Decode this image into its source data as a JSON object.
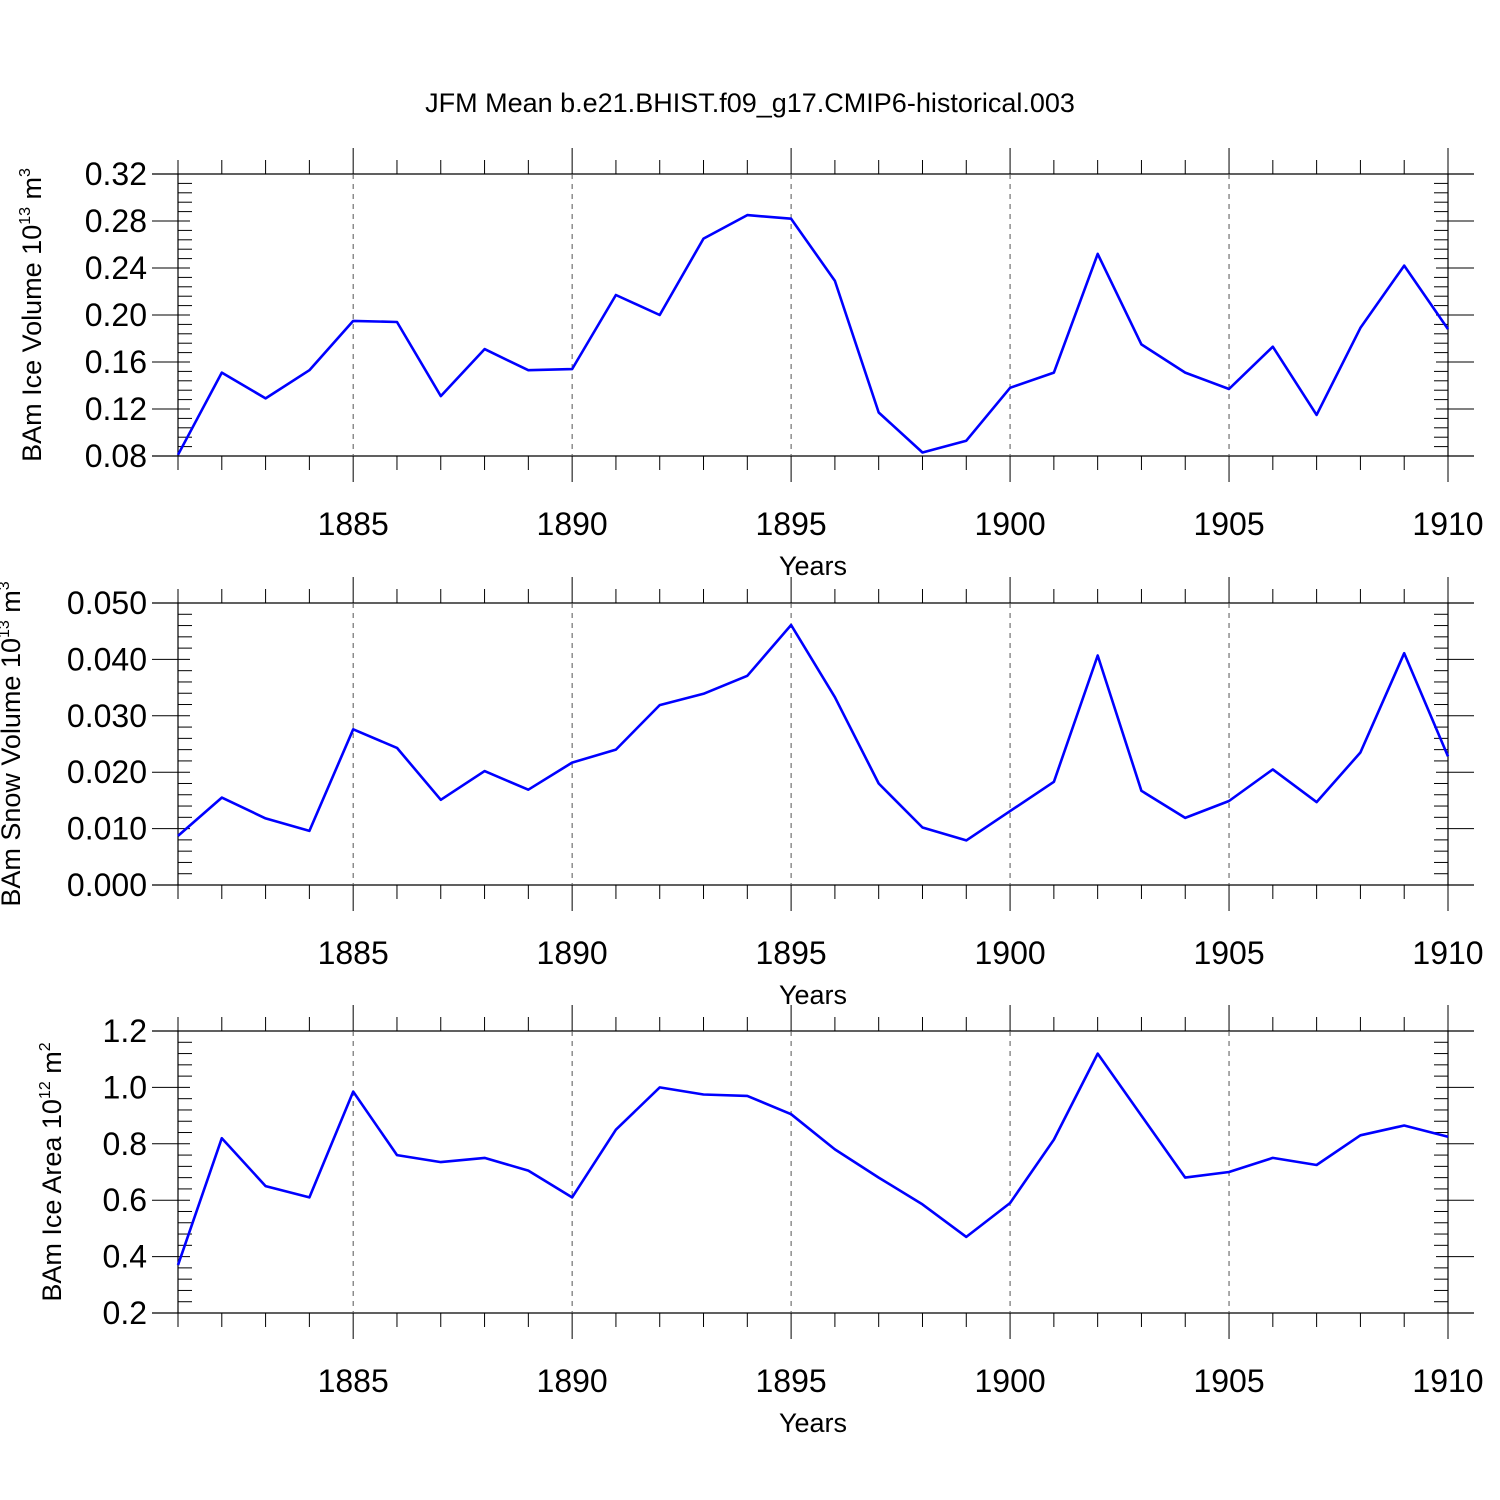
{
  "figure": {
    "title": "JFM Mean b.e21.BHIST.f09_g17.CMIP6-historical.003",
    "background": "#ffffff",
    "line_color": "#0000ff"
  },
  "chart_data": [
    {
      "type": "line",
      "title": "",
      "xlabel": "Years",
      "ylabel": {
        "prefix": "BAm Ice Volume 10",
        "exp": "13",
        "unit": " m",
        "unit_exp": "3"
      },
      "xlim": [
        1881,
        1910
      ],
      "ylim": [
        0.08,
        0.32
      ],
      "xticks": [
        1885,
        1890,
        1895,
        1900,
        1905,
        1910
      ],
      "yticks": [
        "0.08",
        "0.12",
        "0.16",
        "0.20",
        "0.24",
        "0.28",
        "0.32"
      ],
      "grid": "vertical dashed at major x ticks",
      "series": [
        {
          "x": [
            1881,
            1882,
            1883,
            1884,
            1885,
            1886,
            1887,
            1888,
            1889,
            1890,
            1891,
            1892,
            1893,
            1894,
            1895,
            1896,
            1897,
            1898,
            1899,
            1900,
            1901,
            1902,
            1903,
            1904,
            1905,
            1906,
            1907,
            1908,
            1909,
            1910
          ],
          "values": [
            0.081,
            0.151,
            0.129,
            0.153,
            0.195,
            0.194,
            0.131,
            0.171,
            0.153,
            0.154,
            0.217,
            0.2,
            0.265,
            0.285,
            0.282,
            0.229,
            0.117,
            0.083,
            0.093,
            0.138,
            0.151,
            0.252,
            0.175,
            0.151,
            0.137,
            0.173,
            0.115,
            0.189,
            0.242,
            0.188
          ]
        }
      ]
    },
    {
      "type": "line",
      "title": "",
      "xlabel": "Years",
      "ylabel": {
        "prefix": "BAm Snow Volume 10",
        "exp": "13",
        "unit": " m",
        "unit_exp": "3"
      },
      "xlim": [
        1881,
        1910
      ],
      "ylim": [
        0.0,
        0.05
      ],
      "xticks": [
        1885,
        1890,
        1895,
        1900,
        1905,
        1910
      ],
      "yticks": [
        "0.000",
        "0.010",
        "0.020",
        "0.030",
        "0.040",
        "0.050"
      ],
      "grid": "vertical dashed at major x ticks",
      "series": [
        {
          "x": [
            1881,
            1882,
            1883,
            1884,
            1885,
            1886,
            1887,
            1888,
            1889,
            1890,
            1891,
            1892,
            1893,
            1894,
            1895,
            1896,
            1897,
            1898,
            1899,
            1900,
            1901,
            1902,
            1903,
            1904,
            1905,
            1906,
            1907,
            1908,
            1909,
            1910
          ],
          "values": [
            0.0087,
            0.0155,
            0.0118,
            0.0096,
            0.0276,
            0.0243,
            0.0151,
            0.0202,
            0.0169,
            0.0217,
            0.024,
            0.0319,
            0.0339,
            0.0371,
            0.0461,
            0.0333,
            0.018,
            0.0102,
            0.0079,
            0.0131,
            0.0183,
            0.0407,
            0.0167,
            0.0119,
            0.0149,
            0.0205,
            0.0147,
            0.0235,
            0.0411,
            0.0228
          ]
        }
      ]
    },
    {
      "type": "line",
      "title": "",
      "xlabel": "Years",
      "ylabel": {
        "prefix": "BAm Ice Area 10",
        "exp": "12",
        "unit": " m",
        "unit_exp": "2"
      },
      "xlim": [
        1881,
        1910
      ],
      "ylim": [
        0.2,
        1.2
      ],
      "xticks": [
        1885,
        1890,
        1895,
        1900,
        1905,
        1910
      ],
      "yticks": [
        "0.2",
        "0.4",
        "0.6",
        "0.8",
        "1.0",
        "1.2"
      ],
      "grid": "vertical dashed at major x ticks",
      "series": [
        {
          "x": [
            1881,
            1882,
            1883,
            1884,
            1885,
            1886,
            1887,
            1888,
            1889,
            1890,
            1891,
            1892,
            1893,
            1894,
            1895,
            1896,
            1897,
            1898,
            1899,
            1900,
            1901,
            1902,
            1903,
            1904,
            1905,
            1906,
            1907,
            1908,
            1909,
            1910
          ],
          "values": [
            0.37,
            0.82,
            0.65,
            0.61,
            0.985,
            0.76,
            0.735,
            0.75,
            0.705,
            0.61,
            0.85,
            1.0,
            0.975,
            0.97,
            0.905,
            0.78,
            0.68,
            0.585,
            0.47,
            0.59,
            0.815,
            1.12,
            0.9,
            0.68,
            0.7,
            0.75,
            0.725,
            0.83,
            0.865,
            0.825
          ]
        }
      ]
    }
  ]
}
